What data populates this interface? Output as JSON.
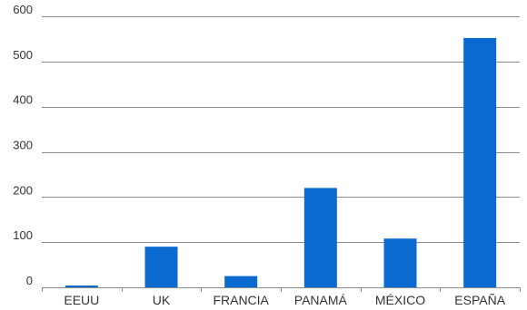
{
  "chart_data": {
    "type": "bar",
    "title": "",
    "xlabel": "",
    "ylabel": "",
    "categories": [
      "EEUU",
      "UK",
      "FRANCIA",
      "PANAMÁ",
      "MÉXICO",
      "ESPAÑA"
    ],
    "values": [
      4,
      90,
      25,
      220,
      108,
      552
    ],
    "ylim": [
      0,
      600
    ],
    "yticks": [
      0,
      100,
      200,
      300,
      400,
      500,
      600
    ],
    "grid": true,
    "legend": "none",
    "colors": {
      "bar": "#0a6ad0",
      "grid": "#8c8c8c",
      "axis": "#8c8c8c"
    }
  }
}
